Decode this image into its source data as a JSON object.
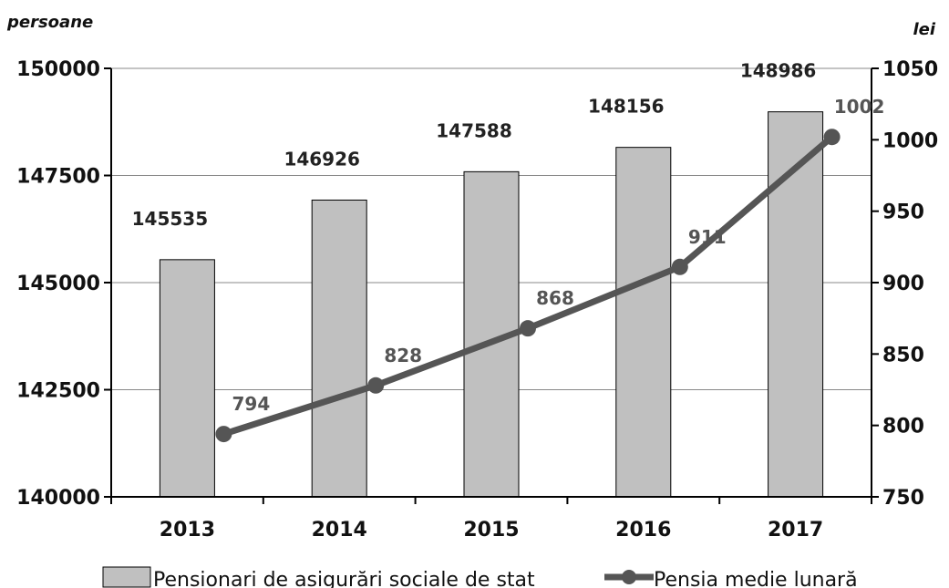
{
  "chart_data": {
    "type": "bar+line",
    "categories": [
      "2013",
      "2014",
      "2015",
      "2016",
      "2017"
    ],
    "left_axis": {
      "unit": "persoane",
      "ylim": [
        140000,
        150000
      ],
      "ticks": [
        "140000",
        "142500",
        "145000",
        "147500",
        "150000"
      ]
    },
    "right_axis": {
      "unit": "lei",
      "ylim": [
        750,
        1050
      ],
      "ticks": [
        "750",
        "800",
        "850",
        "900",
        "950",
        "1000",
        "1050"
      ]
    },
    "series": [
      {
        "name": "Pensionari de asigurări sociale de stat",
        "type": "bar",
        "axis": "left",
        "color": "#c0c0c0",
        "values": [
          145535,
          146926,
          147588,
          148156,
          148986
        ],
        "labels": [
          "145535",
          "146926",
          "147588",
          "148156",
          "148986"
        ]
      },
      {
        "name": "Pensia medie lunară",
        "type": "line",
        "axis": "right",
        "color": "#555555",
        "values": [
          794,
          828,
          868,
          911,
          1002
        ],
        "labels": [
          "794",
          "828",
          "868",
          "911",
          "1002"
        ]
      }
    ],
    "grid": true,
    "legend": "bottom"
  }
}
